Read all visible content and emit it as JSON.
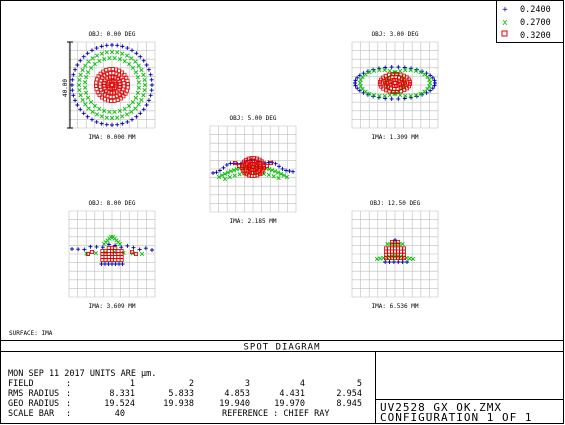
{
  "colors": {
    "blue": "#0000b0",
    "green": "#00c000",
    "red": "#e00000",
    "grid": "#bdbdbd",
    "frame": "#000000"
  },
  "legend": [
    {
      "marker": "+",
      "color": "#0000b0",
      "label": "0.2400"
    },
    {
      "marker": "x",
      "color": "#00c000",
      "label": "0.2700"
    },
    {
      "marker": "square",
      "color": "#e00000",
      "label": "0.3200"
    }
  ],
  "spots": [
    {
      "obj": "OBJ: 0.00 DEG",
      "ima": "IMA: 0.000 MM",
      "pattern": "round"
    },
    {
      "obj": "OBJ: 3.00 DEG",
      "ima": "IMA: 1.309 MM",
      "pattern": "oval"
    },
    {
      "obj": "OBJ: 5.00 DEG",
      "ima": "IMA: 2.185 MM",
      "pattern": "wing"
    },
    {
      "obj": "OBJ: 8.00 DEG",
      "ima": "IMA: 3.609 MM",
      "pattern": "flat"
    },
    {
      "obj": "OBJ: 12.50 DEG",
      "ima": "IMA: 6.536 MM",
      "pattern": "bell"
    }
  ],
  "scale_bar_label": "40.00",
  "surface_label": "SURFACE: IMA",
  "title": "SPOT DIAGRAM",
  "info": {
    "date_line": "MON SEP 11 2017  UNITS ARE µm.",
    "rows": [
      {
        "label": "FIELD",
        "sep": ":",
        "values": [
          "1",
          "2",
          "3",
          "4",
          "5"
        ]
      },
      {
        "label": "RMS RADIUS",
        "sep": ":",
        "values": [
          "8.331",
          "5.833",
          "4.853",
          "4.431",
          "2.954"
        ]
      },
      {
        "label": "GEO RADIUS",
        "sep": ":",
        "values": [
          "19.524",
          "19.938",
          "19.940",
          "19.970",
          "8.945"
        ]
      }
    ],
    "scale_bar": {
      "label": "SCALE BAR",
      "sep": ":",
      "value": "40",
      "reference": "REFERENCE  : CHIEF RAY"
    }
  },
  "file_name": "UV2528_GX_OK.ZMX",
  "configuration": "CONFIGURATION 1 OF 1"
}
